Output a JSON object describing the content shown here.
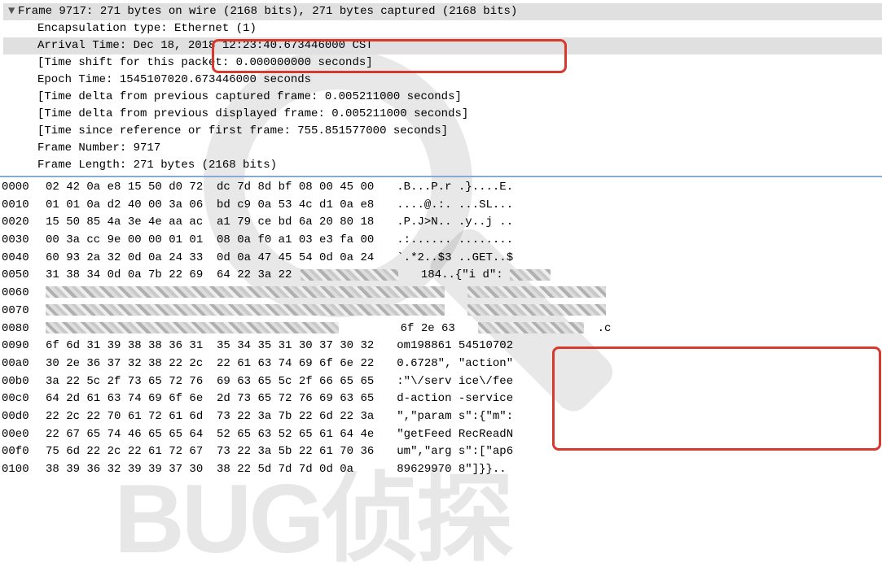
{
  "frame": {
    "header": "Frame 9717: 271 bytes on wire (2168 bits), 271 bytes captured (2168 bits)",
    "encap": "Encapsulation type: Ethernet (1)",
    "arrival": "Arrival Time: Dec 18, 2018 12:23:40.673446000 CST",
    "shift": "[Time shift for this packet: 0.000000000 seconds]",
    "epoch": "Epoch Time: 1545107020.673446000 seconds",
    "delta_cap": "[Time delta from previous captured frame: 0.005211000 seconds]",
    "delta_disp": "[Time delta from previous displayed frame: 0.005211000 seconds]",
    "since_ref": "[Time since reference or first frame: 755.851577000 seconds]",
    "frame_no": "Frame Number: 9717",
    "frame_len": "Frame Length: 271 bytes (2168 bits)"
  },
  "hex": {
    "rows": [
      {
        "off": "0000",
        "b": "02 42 0a e8 15 50 d0 72  dc 7d 8d bf 08 00 45 00",
        "a": ".B...P.r .}....E."
      },
      {
        "off": "0010",
        "b": "01 01 0a d2 40 00 3a 06  bd c9 0a 53 4c d1 0a e8",
        "a": "....@.:. ...SL..."
      },
      {
        "off": "0020",
        "b": "15 50 85 4a 3e 4e aa ac  a1 79 ce bd 6a 20 80 18",
        "a": ".P.J>N.. .y..j .."
      },
      {
        "off": "0030",
        "b": "00 3a cc 9e 00 00 01 01  08 0a f0 a1 03 e3 fa 00",
        "a": ".:...... ........"
      },
      {
        "off": "0040",
        "b": "60 93 2a 32 0d 0a 24 33  0d 0a 47 45 54 0d 0a 24",
        "a": "`.*2..$3 ..GET..$"
      },
      {
        "off": "0050",
        "b": "31 38 34 0d 0a 7b 22 69  64 22 3a 22 ",
        "a": "184..{\"i d\": "
      },
      {
        "off": "0060",
        "b": "",
        "a": ""
      },
      {
        "off": "0070",
        "b": "",
        "a": ""
      },
      {
        "off": "0080",
        "b": "                               6f 2e 63",
        "a": "             .c"
      },
      {
        "off": "0090",
        "b": "6f 6d 31 39 38 38 36 31  35 34 35 31 30 37 30 32",
        "a": "om198861 54510702"
      },
      {
        "off": "00a0",
        "b": "30 2e 36 37 32 38 22 2c  22 61 63 74 69 6f 6e 22",
        "a": "0.6728\", \"action\""
      },
      {
        "off": "00b0",
        "b": "3a 22 5c 2f 73 65 72 76  69 63 65 5c 2f 66 65 65",
        "a": ":\"\\/serv ice\\/fee"
      },
      {
        "off": "00c0",
        "b": "64 2d 61 63 74 69 6f 6e  2d 73 65 72 76 69 63 65",
        "a": "d-action -service"
      },
      {
        "off": "00d0",
        "b": "22 2c 22 70 61 72 61 6d  73 22 3a 7b 22 6d 22 3a",
        "a": "\",\"param s\":{\"m\":"
      },
      {
        "off": "00e0",
        "b": "22 67 65 74 46 65 65 64  52 65 63 52 65 61 64 4e",
        "a": "\"getFeed RecReadN"
      },
      {
        "off": "00f0",
        "b": "75 6d 22 2c 22 61 72 67  73 22 3a 5b 22 61 70 36",
        "a": "um\",\"arg s\":[\"ap6"
      },
      {
        "off": "0100",
        "b": "38 39 36 32 39 39 37 30  38 22 5d 7d 7d 0d 0a   ",
        "a": "89629970 8\"]}}.."
      }
    ]
  },
  "style": {
    "highlight_border": "#d63a2c",
    "separator": "#87a9d6",
    "sel_bg": "#e0e0e0",
    "font": "Courier New"
  }
}
